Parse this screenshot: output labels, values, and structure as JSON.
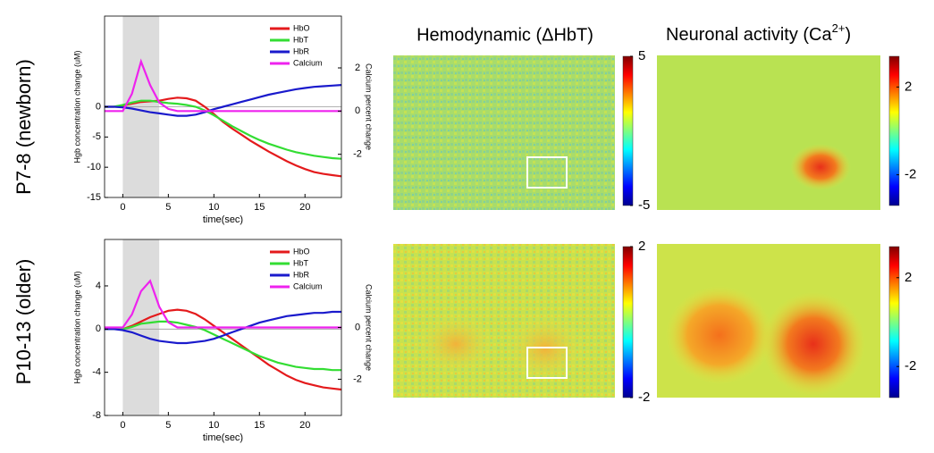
{
  "row_labels": [
    "P7-8 (newborn)",
    "P10-13 (older)"
  ],
  "column_titles": [
    {
      "text": "Hemodynamic (ΔHbT)"
    },
    {
      "text": "Neuronal activity (Ca",
      "superscript": "2+",
      "end": ")"
    }
  ],
  "chart_data": [
    {
      "type": "line",
      "xlabel": "time(sec)",
      "ylabel": "Hgb concentration change (uM)",
      "y2label": "Calcium percent change",
      "x": [
        -2,
        -1,
        0,
        1,
        2,
        3,
        4,
        5,
        6,
        7,
        8,
        9,
        10,
        11,
        12,
        13,
        14,
        15,
        16,
        17,
        18,
        19,
        20,
        21,
        22,
        23,
        24
      ],
      "xlim": [
        -2,
        24
      ],
      "xticks": [
        0,
        5,
        10,
        15,
        20
      ],
      "ylim": [
        -15,
        15
      ],
      "yticks": [
        -15,
        -10,
        -5,
        0
      ],
      "y2lim": [
        -4,
        4.4
      ],
      "y2ticks": [
        -2,
        0,
        2
      ],
      "shaded_region": [
        0,
        4
      ],
      "zero_line": true,
      "legend": "upper right",
      "series": [
        {
          "name": "HbO",
          "color": "#e41a1c",
          "values": [
            0,
            0,
            0.2,
            0.5,
            0.8,
            0.9,
            1.0,
            1.3,
            1.5,
            1.4,
            1.0,
            0,
            -1.2,
            -2.5,
            -3.6,
            -4.6,
            -5.6,
            -6.5,
            -7.4,
            -8.2,
            -9,
            -9.7,
            -10.3,
            -10.8,
            -11.1,
            -11.3,
            -11.5
          ]
        },
        {
          "name": "HbT",
          "color": "#33dd33",
          "values": [
            0,
            0,
            0.3,
            0.7,
            1.0,
            1.0,
            0.8,
            0.6,
            0.5,
            0.3,
            0,
            -0.6,
            -1.4,
            -2.3,
            -3.2,
            -4.0,
            -4.8,
            -5.5,
            -6.1,
            -6.6,
            -7.1,
            -7.5,
            -7.8,
            -8.1,
            -8.3,
            -8.5,
            -8.6
          ]
        },
        {
          "name": "HbR",
          "color": "#1a1acc",
          "values": [
            0,
            0,
            -0.1,
            -0.3,
            -0.6,
            -0.9,
            -1.1,
            -1.3,
            -1.5,
            -1.5,
            -1.3,
            -0.9,
            -0.4,
            0,
            0.4,
            0.8,
            1.2,
            1.6,
            2.0,
            2.3,
            2.6,
            2.9,
            3.1,
            3.3,
            3.4,
            3.5,
            3.6
          ]
        },
        {
          "name": "Calcium",
          "color": "#ee22ee",
          "axis": "y2",
          "values": [
            0,
            0,
            0,
            0.8,
            2.3,
            1.2,
            0.4,
            0.1,
            0,
            0,
            0,
            0,
            0,
            0,
            0,
            0,
            0,
            0,
            0,
            0,
            0,
            0,
            0,
            0,
            0,
            0,
            0
          ]
        }
      ]
    },
    {
      "type": "line",
      "xlabel": "time(sec)",
      "ylabel": "Hgb concentration change (uM)",
      "y2label": "Calcium percent change",
      "x": [
        -2,
        -1,
        0,
        1,
        2,
        3,
        4,
        5,
        6,
        7,
        8,
        9,
        10,
        11,
        12,
        13,
        14,
        15,
        16,
        17,
        18,
        19,
        20,
        21,
        22,
        23,
        24
      ],
      "xlim": [
        -2,
        24
      ],
      "xticks": [
        0,
        5,
        10,
        15,
        20
      ],
      "ylim": [
        -8,
        8.3
      ],
      "yticks": [
        -8,
        -4,
        0,
        4
      ],
      "y2lim": [
        -3.4,
        3.4
      ],
      "y2ticks": [
        -2,
        0
      ],
      "shaded_region": [
        0,
        4
      ],
      "zero_line": true,
      "legend": "upper right",
      "series": [
        {
          "name": "HbO",
          "color": "#e41a1c",
          "values": [
            0,
            0,
            0,
            0.3,
            0.7,
            1.1,
            1.4,
            1.7,
            1.8,
            1.7,
            1.4,
            0.9,
            0.3,
            -0.3,
            -0.9,
            -1.5,
            -2.1,
            -2.7,
            -3.3,
            -3.8,
            -4.3,
            -4.7,
            -5.0,
            -5.2,
            -5.4,
            -5.5,
            -5.6
          ]
        },
        {
          "name": "HbT",
          "color": "#33dd33",
          "values": [
            0,
            0,
            0,
            0.2,
            0.5,
            0.6,
            0.7,
            0.7,
            0.6,
            0.4,
            0.2,
            -0.1,
            -0.5,
            -0.9,
            -1.3,
            -1.7,
            -2.1,
            -2.5,
            -2.8,
            -3.1,
            -3.3,
            -3.5,
            -3.6,
            -3.7,
            -3.7,
            -3.8,
            -3.8
          ]
        },
        {
          "name": "HbR",
          "color": "#1a1acc",
          "values": [
            0,
            0,
            -0.1,
            -0.3,
            -0.6,
            -0.9,
            -1.1,
            -1.2,
            -1.3,
            -1.3,
            -1.2,
            -1.1,
            -0.9,
            -0.6,
            -0.3,
            0,
            0.3,
            0.6,
            0.8,
            1.0,
            1.2,
            1.3,
            1.4,
            1.5,
            1.5,
            1.6,
            1.6
          ]
        },
        {
          "name": "Calcium",
          "color": "#ee22ee",
          "axis": "y2",
          "values": [
            0,
            0,
            0,
            0.5,
            1.4,
            1.8,
            0.8,
            0.2,
            0,
            0,
            0,
            0,
            0,
            0,
            0,
            0,
            0,
            0,
            0,
            0,
            0,
            0,
            0,
            0,
            0,
            0,
            0
          ]
        }
      ]
    }
  ],
  "heatmaps": [
    {
      "clim": [
        -5,
        5
      ],
      "ticks": [
        5,
        -5
      ]
    },
    {
      "clim": [
        -3.4,
        3.4
      ],
      "ticks": [
        2,
        -2
      ]
    },
    {
      "clim": [
        -2,
        2
      ],
      "ticks": [
        2,
        -2
      ]
    },
    {
      "clim": [
        -3.4,
        3.4
      ],
      "ticks": [
        2,
        -2
      ]
    }
  ]
}
